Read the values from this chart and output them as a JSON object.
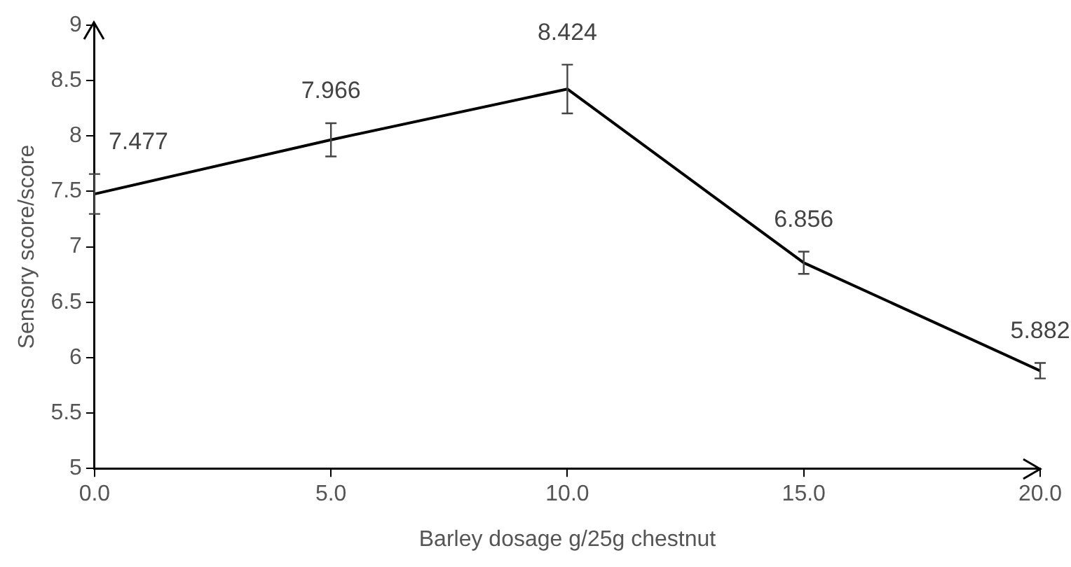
{
  "chart_data": {
    "type": "line",
    "xlabel": "Barley dosage g/25g chestnut",
    "ylabel": "Sensory score/score",
    "x": [
      0,
      5,
      10,
      15,
      20
    ],
    "series": [
      {
        "color": "#000000",
        "values": [
          7.477,
          7.966,
          8.424,
          6.856,
          5.882
        ],
        "errors": [
          0.18,
          0.15,
          0.22,
          0.1,
          0.07
        ]
      }
    ],
    "xlim": [
      0,
      20
    ],
    "xticks": [
      {
        "value": 0,
        "label": "0.0"
      },
      {
        "value": 5,
        "label": "5.0"
      },
      {
        "value": 10,
        "label": "10.0"
      },
      {
        "value": 15,
        "label": "15.0"
      },
      {
        "value": 20,
        "label": "20.0"
      }
    ],
    "ylim": [
      5,
      9
    ],
    "yticks": [
      5,
      5.5,
      6,
      6.5,
      7,
      7.5,
      8,
      8.5,
      9
    ],
    "grid": false,
    "legend": false,
    "marker": "none",
    "line_style": "solid",
    "data_labels": true
  }
}
